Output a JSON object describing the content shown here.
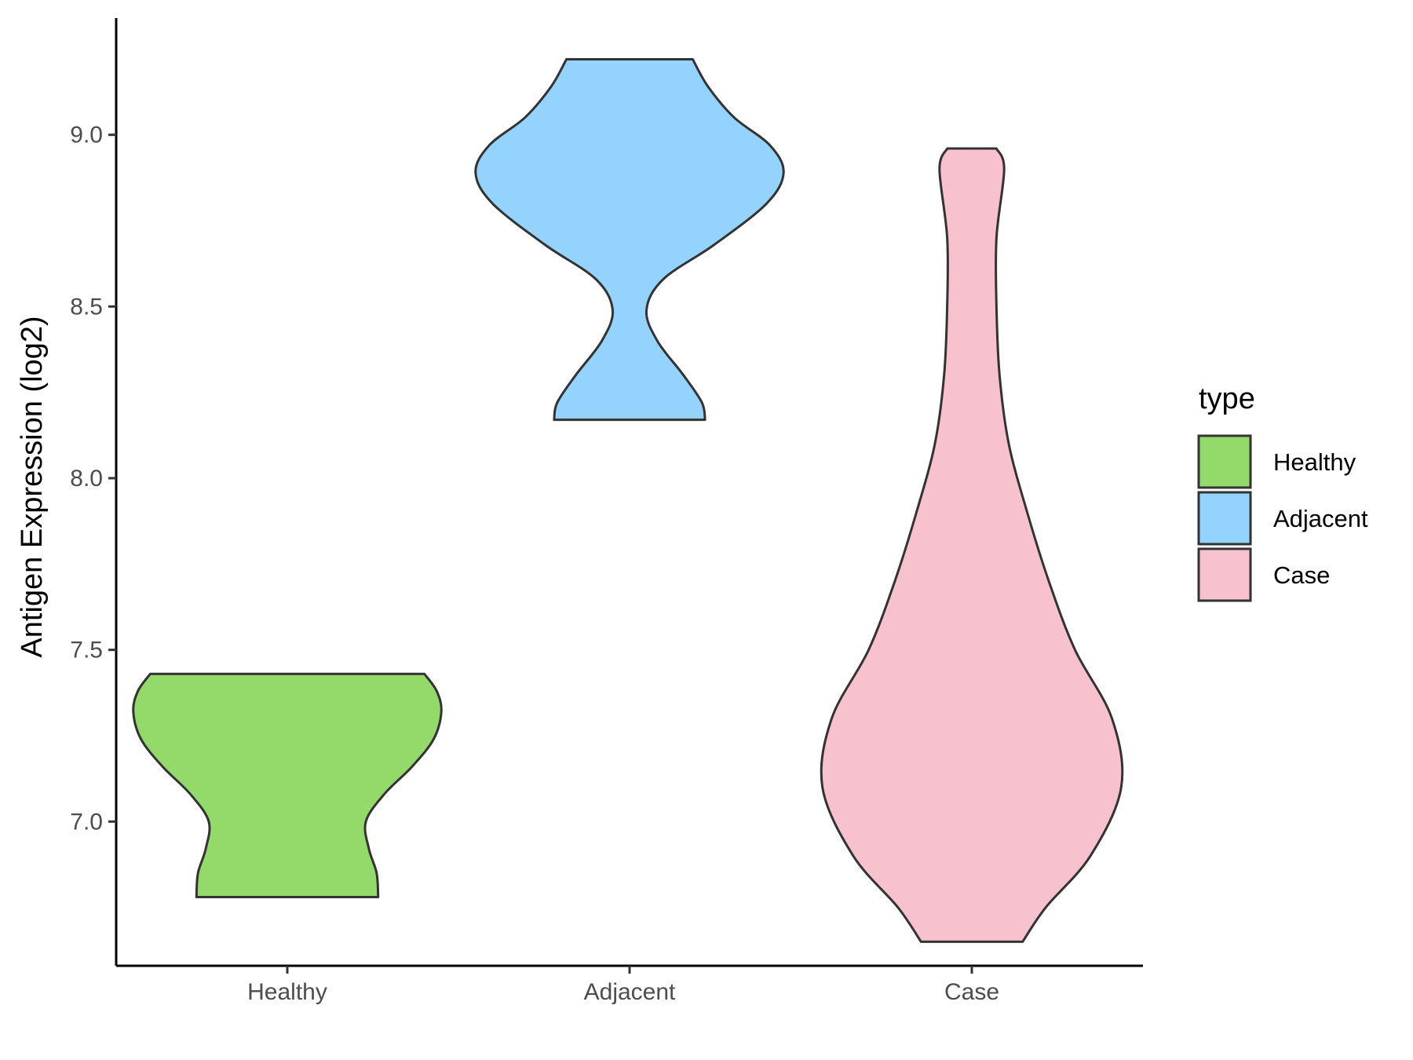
{
  "chart_data": {
    "type": "violin",
    "categories": [
      "Healthy",
      "Adjacent",
      "Case"
    ],
    "ylabel": "Antigen Expression (log2)",
    "xlabel": "",
    "ylim": [
      6.58,
      9.34
    ],
    "yticks": [
      "7.0",
      "7.5",
      "8.0",
      "8.5",
      "9.0"
    ],
    "legend": {
      "title": "type",
      "position": "right",
      "entries": [
        "Healthy",
        "Adjacent",
        "Case"
      ]
    },
    "colors": {
      "Healthy": "#93da6a",
      "Adjacent": "#93d3fd",
      "Case": "#f7c1cd",
      "outline": "#333333"
    },
    "series": [
      {
        "name": "Healthy",
        "min": 6.78,
        "max": 7.43,
        "density": [
          [
            6.78,
            0.59
          ],
          [
            6.85,
            0.58
          ],
          [
            6.92,
            0.53
          ],
          [
            7.0,
            0.51
          ],
          [
            7.08,
            0.63
          ],
          [
            7.16,
            0.81
          ],
          [
            7.24,
            0.95
          ],
          [
            7.32,
            1.0
          ],
          [
            7.38,
            0.97
          ],
          [
            7.43,
            0.89
          ]
        ]
      },
      {
        "name": "Adjacent",
        "min": 8.17,
        "max": 9.22,
        "density": [
          [
            8.17,
            0.49
          ],
          [
            8.22,
            0.47
          ],
          [
            8.3,
            0.35
          ],
          [
            8.4,
            0.18
          ],
          [
            8.49,
            0.11
          ],
          [
            8.58,
            0.22
          ],
          [
            8.68,
            0.55
          ],
          [
            8.8,
            0.89
          ],
          [
            8.89,
            1.0
          ],
          [
            8.97,
            0.91
          ],
          [
            9.05,
            0.68
          ],
          [
            9.14,
            0.51
          ],
          [
            9.22,
            0.41
          ]
        ]
      },
      {
        "name": "Case",
        "min": 6.65,
        "max": 8.96,
        "density": [
          [
            6.65,
            0.33
          ],
          [
            6.75,
            0.48
          ],
          [
            6.9,
            0.77
          ],
          [
            7.1,
            0.97
          ],
          [
            7.3,
            0.91
          ],
          [
            7.5,
            0.67
          ],
          [
            7.7,
            0.5
          ],
          [
            7.9,
            0.36
          ],
          [
            8.1,
            0.24
          ],
          [
            8.3,
            0.18
          ],
          [
            8.5,
            0.16
          ],
          [
            8.7,
            0.16
          ],
          [
            8.9,
            0.21
          ],
          [
            8.96,
            0.16
          ]
        ]
      }
    ]
  }
}
